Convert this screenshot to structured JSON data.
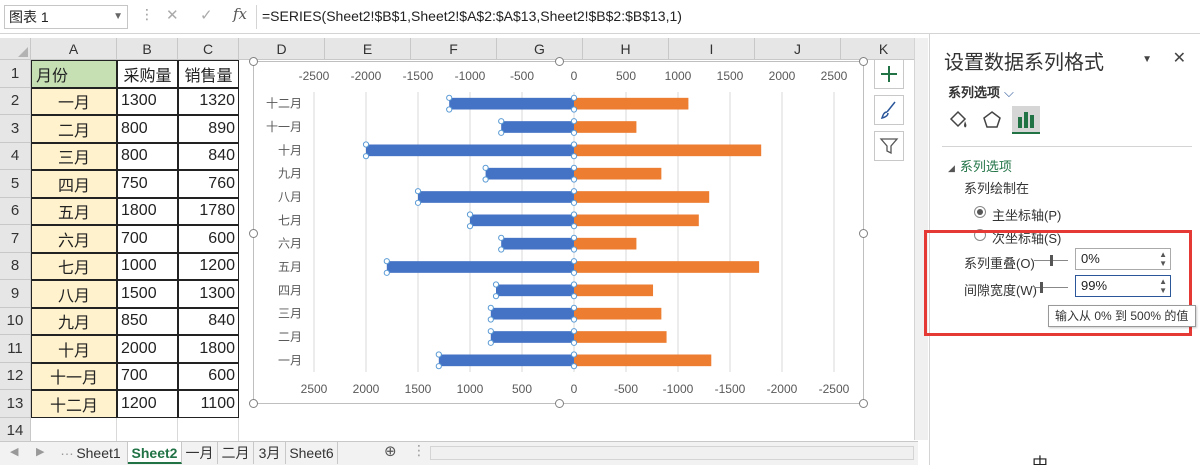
{
  "formula_bar": {
    "name_box": "图表 1",
    "fx": "fx",
    "formula": "=SERIES(Sheet2!$B$1,Sheet2!$A$2:$A$13,Sheet2!$B$2:$B$13,1)"
  },
  "columns": [
    "A",
    "B",
    "C",
    "D",
    "E",
    "F",
    "G",
    "H",
    "I",
    "J",
    "K"
  ],
  "rows": [
    "1",
    "2",
    "3",
    "4",
    "5",
    "6",
    "7",
    "8",
    "9",
    "10",
    "11",
    "12",
    "13",
    "14"
  ],
  "table": {
    "headers": [
      "月份",
      "采购量",
      "销售量"
    ],
    "records": [
      {
        "month": "一月",
        "purchase": "1300",
        "sales": "1320"
      },
      {
        "month": "二月",
        "purchase": "800",
        "sales": "890"
      },
      {
        "month": "三月",
        "purchase": "800",
        "sales": "840"
      },
      {
        "month": "四月",
        "purchase": "750",
        "sales": "760"
      },
      {
        "month": "五月",
        "purchase": "1800",
        "sales": "1780"
      },
      {
        "month": "六月",
        "purchase": "700",
        "sales": "600"
      },
      {
        "month": "七月",
        "purchase": "1000",
        "sales": "1200"
      },
      {
        "month": "八月",
        "purchase": "1500",
        "sales": "1300"
      },
      {
        "month": "九月",
        "purchase": "850",
        "sales": "840"
      },
      {
        "month": "十月",
        "purchase": "2000",
        "sales": "1800"
      },
      {
        "month": "十一月",
        "purchase": "700",
        "sales": "600"
      },
      {
        "month": "十二月",
        "purchase": "1200",
        "sales": "1100"
      }
    ]
  },
  "chart_data": {
    "type": "bar",
    "orientation": "horizontal",
    "title": "",
    "categories": [
      "一月",
      "二月",
      "三月",
      "四月",
      "五月",
      "六月",
      "七月",
      "八月",
      "九月",
      "十月",
      "十一月",
      "十二月"
    ],
    "series": [
      {
        "name": "采购量",
        "values": [
          1300,
          800,
          800,
          750,
          1800,
          700,
          1000,
          1500,
          850,
          2000,
          700,
          1200
        ],
        "color": "#4472c4",
        "axis": "primary (reversed, left)"
      },
      {
        "name": "销售量",
        "values": [
          1320,
          890,
          840,
          760,
          1780,
          600,
          1200,
          1300,
          840,
          1800,
          600,
          1100
        ],
        "color": "#ed7d31",
        "axis": "secondary (right)"
      }
    ],
    "top_axis_ticks": [
      "-2500",
      "-2000",
      "-1500",
      "-1000",
      "-500",
      "0",
      "500",
      "1000",
      "1500",
      "2000",
      "2500"
    ],
    "bottom_axis_ticks": [
      "2500",
      "2000",
      "1500",
      "1000",
      "500",
      "0",
      "-500",
      "-1000",
      "-1500",
      "-2000",
      "-2500"
    ],
    "xlim": [
      -2500,
      2500
    ],
    "grid": true,
    "legend": "none",
    "selected_series": "采购量"
  },
  "sheet_tabs": [
    {
      "label": "Sheet1",
      "active": false
    },
    {
      "label": "Sheet2",
      "active": true
    },
    {
      "label": "一月",
      "active": false
    },
    {
      "label": "二月",
      "active": false
    },
    {
      "label": "3月",
      "active": false
    },
    {
      "label": "Sheet6",
      "active": false
    }
  ],
  "panel": {
    "title": "设置数据系列格式",
    "options_dropdown": "系列选项",
    "section_title": "系列选项",
    "plot_on_label": "系列绘制在",
    "primary_axis": "主坐标轴(P)",
    "secondary_axis": "次坐标轴(S)",
    "overlap_label": "系列重叠(O)",
    "overlap_value": "0%",
    "gap_label": "间隙宽度(W)",
    "gap_value": "99%",
    "tooltip": "输入从 0% 到 500% 的值",
    "highlight_color": "#e53935"
  },
  "ime": "中"
}
